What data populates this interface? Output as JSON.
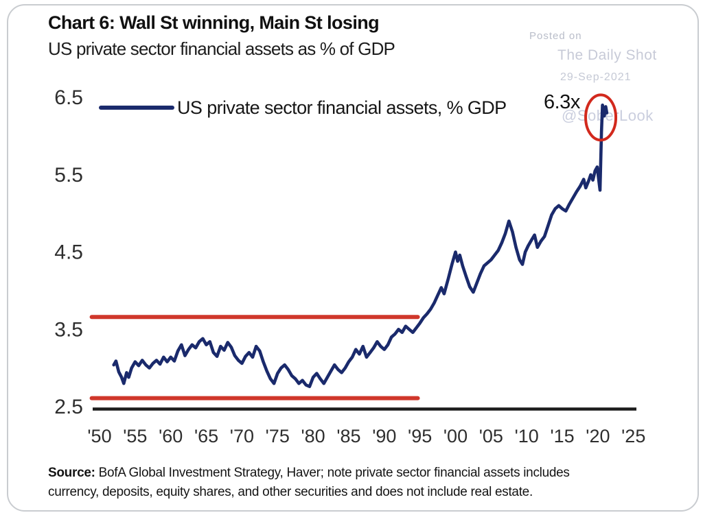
{
  "header": {
    "title": "Chart 6: Wall St winning, Main St losing",
    "subtitle": "US private sector financial assets as % of GDP"
  },
  "watermark": {
    "posted_on": "Posted on",
    "source_name": "The Daily Shot",
    "date": "29-Sep-2021",
    "handle": "@SoberLook"
  },
  "legend": {
    "label": "US private sector financial assets, % GDP"
  },
  "source_note": {
    "label": "Source:",
    "line1": " BofA Global Investment Strategy, Haver; note private sector financial assets includes",
    "line2": "currency, deposits,  equity shares, and other securities and does not include  real estate."
  },
  "chart_data": {
    "type": "line",
    "title": "Chart 6: Wall St winning, Main St losing",
    "subtitle": "US private sector financial assets as % of GDP",
    "xlabel": "",
    "ylabel": "",
    "grid": false,
    "legend_position": "top-left-inside",
    "xlim": [
      1948.5,
      2026.5
    ],
    "ylim": [
      2.45,
      6.6
    ],
    "x_ticks": [
      {
        "year": 1950,
        "label": "'50"
      },
      {
        "year": 1955,
        "label": "'55"
      },
      {
        "year": 1960,
        "label": "'60"
      },
      {
        "year": 1965,
        "label": "'65"
      },
      {
        "year": 1970,
        "label": "'70"
      },
      {
        "year": 1975,
        "label": "'75"
      },
      {
        "year": 1980,
        "label": "'80"
      },
      {
        "year": 1985,
        "label": "'85"
      },
      {
        "year": 1990,
        "label": "'90"
      },
      {
        "year": 1995,
        "label": "'95"
      },
      {
        "year": 2000,
        "label": "'00"
      },
      {
        "year": 2005,
        "label": "'05"
      },
      {
        "year": 2010,
        "label": "'10"
      },
      {
        "year": 2015,
        "label": "'15"
      },
      {
        "year": 2020,
        "label": "'20"
      },
      {
        "year": 2025,
        "label": "'25"
      }
    ],
    "y_ticks": [
      {
        "value": 2.5,
        "label": "2.5"
      },
      {
        "value": 3.5,
        "label": "3.5"
      },
      {
        "value": 4.5,
        "label": "4.5"
      },
      {
        "value": 5.5,
        "label": "5.5"
      },
      {
        "value": 6.5,
        "label": "6.5"
      }
    ],
    "reference_lines": [
      {
        "name": "1950-1995 range high",
        "value": 3.66,
        "x_start": 1948.9,
        "x_end": 1994.7,
        "color": "#d0372b"
      },
      {
        "name": "1950-1995 range low",
        "value": 2.61,
        "x_start": 1948.9,
        "x_end": 1994.7,
        "color": "#d0372b"
      }
    ],
    "annotation": {
      "label": "6.3x",
      "circle_year": 2020.4,
      "circle_value": 6.24,
      "circle_color": "#d2291d"
    },
    "series": [
      {
        "name": "US private sector financial assets, % GDP",
        "color": "#1a2a6c",
        "points": [
          [
            1952,
            3.04
          ],
          [
            1952.3,
            3.09
          ],
          [
            1952.7,
            2.95
          ],
          [
            1953.1,
            2.88
          ],
          [
            1953.4,
            2.8
          ],
          [
            1953.8,
            2.94
          ],
          [
            1954.1,
            2.88
          ],
          [
            1954.5,
            3.0
          ],
          [
            1955,
            3.08
          ],
          [
            1955.5,
            3.03
          ],
          [
            1956,
            3.1
          ],
          [
            1956.5,
            3.04
          ],
          [
            1957,
            3.0
          ],
          [
            1957.5,
            3.06
          ],
          [
            1958,
            3.1
          ],
          [
            1958.5,
            3.05
          ],
          [
            1959,
            3.14
          ],
          [
            1959.5,
            3.08
          ],
          [
            1960,
            3.14
          ],
          [
            1960.5,
            3.09
          ],
          [
            1961,
            3.22
          ],
          [
            1961.5,
            3.3
          ],
          [
            1962,
            3.16
          ],
          [
            1962.5,
            3.24
          ],
          [
            1963,
            3.3
          ],
          [
            1963.5,
            3.26
          ],
          [
            1964,
            3.34
          ],
          [
            1964.5,
            3.38
          ],
          [
            1965,
            3.3
          ],
          [
            1965.5,
            3.34
          ],
          [
            1966,
            3.2
          ],
          [
            1966.5,
            3.15
          ],
          [
            1967,
            3.28
          ],
          [
            1967.5,
            3.23
          ],
          [
            1968,
            3.33
          ],
          [
            1968.5,
            3.27
          ],
          [
            1969,
            3.16
          ],
          [
            1969.5,
            3.1
          ],
          [
            1970,
            3.06
          ],
          [
            1970.5,
            3.15
          ],
          [
            1971,
            3.2
          ],
          [
            1971.5,
            3.14
          ],
          [
            1972,
            3.28
          ],
          [
            1972.5,
            3.22
          ],
          [
            1973,
            3.08
          ],
          [
            1973.5,
            2.96
          ],
          [
            1974,
            2.86
          ],
          [
            1974.5,
            2.8
          ],
          [
            1975,
            2.93
          ],
          [
            1975.5,
            3.0
          ],
          [
            1976,
            3.04
          ],
          [
            1976.5,
            2.98
          ],
          [
            1977,
            2.9
          ],
          [
            1977.5,
            2.86
          ],
          [
            1978,
            2.8
          ],
          [
            1978.5,
            2.84
          ],
          [
            1979,
            2.78
          ],
          [
            1979.5,
            2.76
          ],
          [
            1980,
            2.88
          ],
          [
            1980.5,
            2.93
          ],
          [
            1981,
            2.86
          ],
          [
            1981.5,
            2.8
          ],
          [
            1982,
            2.88
          ],
          [
            1982.5,
            2.96
          ],
          [
            1983,
            3.04
          ],
          [
            1983.5,
            2.98
          ],
          [
            1984,
            2.94
          ],
          [
            1984.5,
            3.0
          ],
          [
            1985,
            3.08
          ],
          [
            1985.5,
            3.14
          ],
          [
            1986,
            3.24
          ],
          [
            1986.5,
            3.18
          ],
          [
            1987,
            3.28
          ],
          [
            1987.5,
            3.14
          ],
          [
            1988,
            3.2
          ],
          [
            1988.5,
            3.26
          ],
          [
            1989,
            3.34
          ],
          [
            1989.5,
            3.28
          ],
          [
            1990,
            3.24
          ],
          [
            1990.5,
            3.3
          ],
          [
            1991,
            3.4
          ],
          [
            1991.5,
            3.44
          ],
          [
            1992,
            3.5
          ],
          [
            1992.5,
            3.46
          ],
          [
            1993,
            3.54
          ],
          [
            1993.5,
            3.5
          ],
          [
            1994,
            3.46
          ],
          [
            1994.5,
            3.52
          ],
          [
            1995,
            3.58
          ],
          [
            1995.5,
            3.65
          ],
          [
            1996,
            3.7
          ],
          [
            1996.5,
            3.76
          ],
          [
            1997,
            3.84
          ],
          [
            1997.5,
            3.94
          ],
          [
            1998,
            4.04
          ],
          [
            1998.4,
            3.96
          ],
          [
            1999,
            4.16
          ],
          [
            1999.5,
            4.34
          ],
          [
            2000,
            4.5
          ],
          [
            2000.3,
            4.38
          ],
          [
            2000.6,
            4.46
          ],
          [
            2001,
            4.32
          ],
          [
            2001.5,
            4.18
          ],
          [
            2002,
            4.05
          ],
          [
            2002.5,
            3.98
          ],
          [
            2003,
            4.1
          ],
          [
            2003.5,
            4.22
          ],
          [
            2004,
            4.32
          ],
          [
            2004.5,
            4.36
          ],
          [
            2005,
            4.4
          ],
          [
            2005.5,
            4.46
          ],
          [
            2006,
            4.52
          ],
          [
            2006.5,
            4.62
          ],
          [
            2007,
            4.74
          ],
          [
            2007.5,
            4.9
          ],
          [
            2008,
            4.76
          ],
          [
            2008.5,
            4.56
          ],
          [
            2009,
            4.4
          ],
          [
            2009.4,
            4.34
          ],
          [
            2009.8,
            4.5
          ],
          [
            2010.2,
            4.58
          ],
          [
            2010.7,
            4.66
          ],
          [
            2011.1,
            4.72
          ],
          [
            2011.5,
            4.56
          ],
          [
            2012,
            4.64
          ],
          [
            2012.5,
            4.7
          ],
          [
            2013,
            4.84
          ],
          [
            2013.5,
            4.98
          ],
          [
            2014,
            5.06
          ],
          [
            2014.5,
            5.1
          ],
          [
            2015,
            5.06
          ],
          [
            2015.5,
            5.03
          ],
          [
            2016,
            5.12
          ],
          [
            2016.5,
            5.2
          ],
          [
            2017,
            5.28
          ],
          [
            2017.5,
            5.35
          ],
          [
            2018,
            5.44
          ],
          [
            2018.3,
            5.33
          ],
          [
            2018.7,
            5.42
          ],
          [
            2019,
            5.5
          ],
          [
            2019.3,
            5.43
          ],
          [
            2019.6,
            5.55
          ],
          [
            2019.9,
            5.6
          ],
          [
            2020.1,
            5.45
          ],
          [
            2020.3,
            5.3
          ],
          [
            2020.5,
            6.05
          ],
          [
            2020.65,
            6.4
          ],
          [
            2020.9,
            6.26
          ],
          [
            2021.1,
            6.38
          ],
          [
            2021.25,
            6.3
          ]
        ]
      }
    ]
  }
}
